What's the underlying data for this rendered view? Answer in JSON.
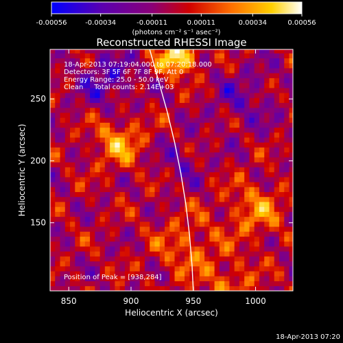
{
  "chart_data": {
    "type": "heatmap",
    "title": "Reconstructed RHESSI Image",
    "colorbar": {
      "range": [
        -0.00056,
        0.00056
      ],
      "tick_labels": [
        "-0.00056",
        "-0.00034",
        "-0.00011",
        "0.00011",
        "0.00034",
        "0.00056"
      ],
      "tick_values": [
        -0.00056,
        -0.00034,
        -0.00011,
        0.00011,
        0.00034,
        0.00056
      ],
      "unit_label": "(photons cm⁻² s⁻¹ asec⁻²)",
      "colors": [
        "#0000ff",
        "#5a00b0",
        "#8a0078",
        "#d00000",
        "#ff7000",
        "#ffd000",
        "#ffffff"
      ]
    },
    "xlabel": "Heliocentric X (arcsec)",
    "ylabel": "Heliocentric Y (arcsec)",
    "xlim": [
      835,
      1030
    ],
    "ylim": [
      95,
      290
    ],
    "x_ticks": [
      850,
      900,
      950,
      1000
    ],
    "y_ticks": [
      150,
      200,
      250
    ],
    "annotations": {
      "time_range": "18-Apr-2013 07:19:04.000 to 07:20:18.000",
      "detectors": "Detectors: 3F 5F 6F 7F 8F 9F, Att 0",
      "energy": "Energy Range: 25.0 - 50.0 keV",
      "method_counts": "Clean     Total counts: 2.14E+03",
      "peak": "Position of Peak = [938,284]"
    },
    "peak": [
      938,
      284
    ],
    "limb_curve": [
      [
        915,
        290
      ],
      [
        922,
        265
      ],
      [
        929,
        240
      ],
      [
        935,
        215
      ],
      [
        940,
        190
      ],
      [
        944,
        165
      ],
      [
        947,
        140
      ],
      [
        949,
        115
      ],
      [
        950,
        95
      ]
    ]
  },
  "footer_timestamp": "18-Apr-2013 07:20"
}
